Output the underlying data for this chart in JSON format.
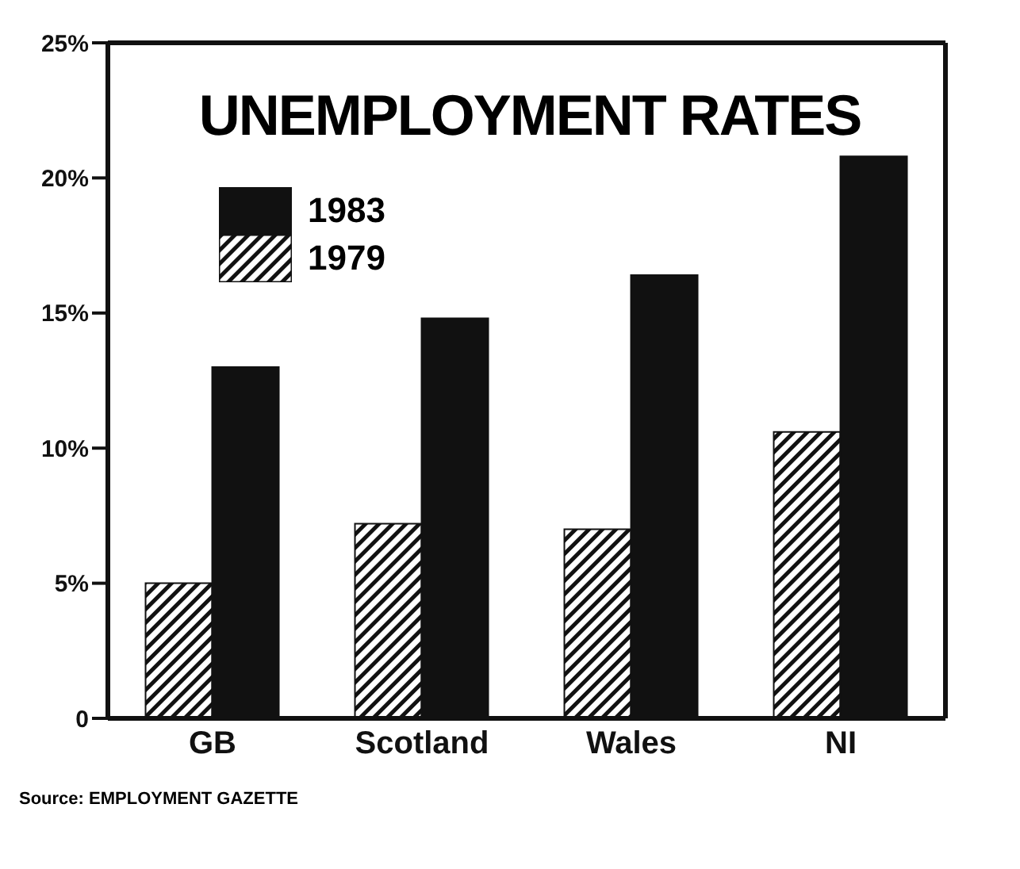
{
  "chart_data": {
    "type": "bar",
    "title": "UNEMPLOYMENT RATES",
    "categories": [
      "GB",
      "Scotland",
      "Wales",
      "NI"
    ],
    "series": [
      {
        "name": "1979",
        "color": "#111111",
        "values": [
          5.0,
          7.2,
          7.0,
          10.6
        ]
      },
      {
        "name": "1983",
        "color": "#111111",
        "values": [
          13.0,
          14.8,
          16.4,
          20.8
        ]
      }
    ],
    "ylim": [
      0,
      25
    ],
    "yticks": [
      {
        "value": 0,
        "label": "0"
      },
      {
        "value": 5,
        "label": "5%"
      },
      {
        "value": 10,
        "label": "10%"
      },
      {
        "value": 15,
        "label": "15%"
      },
      {
        "value": 20,
        "label": "20%"
      },
      {
        "value": 25,
        "label": "25%"
      }
    ],
    "legend": "top left",
    "annotations": [
      "Source: EMPLOYMENT GAZETTE"
    ]
  }
}
